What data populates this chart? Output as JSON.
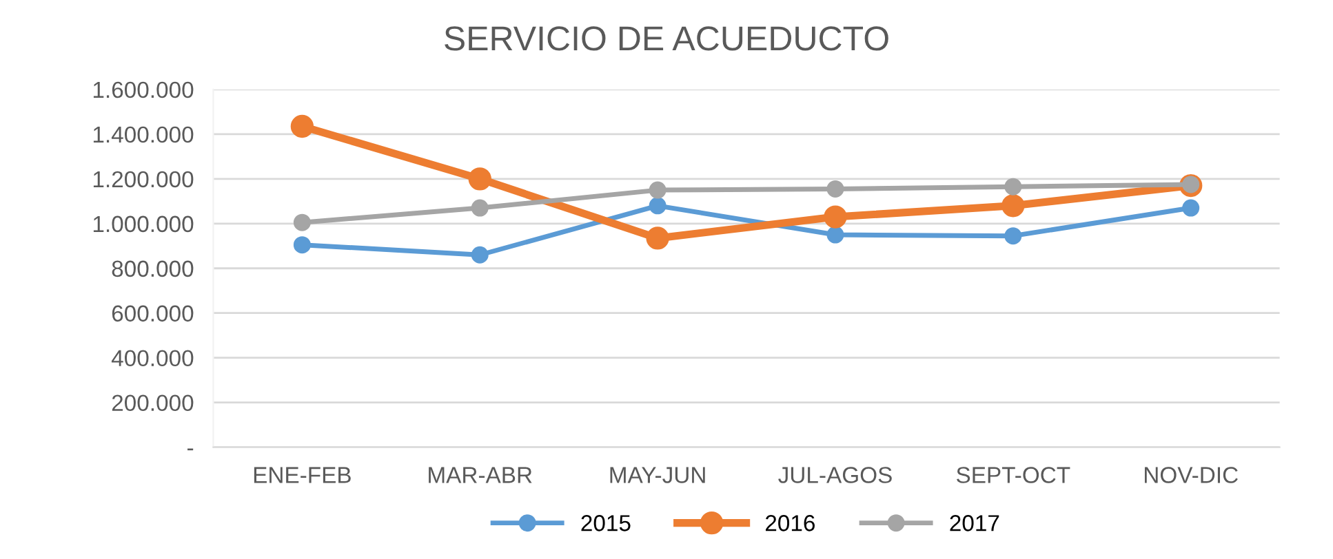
{
  "chart_data": {
    "type": "line",
    "title": "SERVICIO DE ACUEDUCTO",
    "categories": [
      "ENE-FEB",
      "MAR-ABR",
      "MAY-JUN",
      "JUL-AGOS",
      "SEPT-OCT",
      "NOV-DIC"
    ],
    "series": [
      {
        "name": "2015",
        "color": "#5b9bd5",
        "values": [
          905000,
          860000,
          1080000,
          950000,
          945000,
          1070000
        ]
      },
      {
        "name": "2016",
        "color": "#ed7d31",
        "values": [
          1435000,
          1200000,
          935000,
          1030000,
          1080000,
          1170000
        ]
      },
      {
        "name": "2017",
        "color": "#a5a5a5",
        "values": [
          1005000,
          1070000,
          1150000,
          1155000,
          1165000,
          1175000
        ]
      }
    ],
    "ylim": [
      0,
      1600000
    ],
    "yticks": [
      {
        "value": 0,
        "label": "-"
      },
      {
        "value": 200000,
        "label": "200.000"
      },
      {
        "value": 400000,
        "label": "400.000"
      },
      {
        "value": 600000,
        "label": "600.000"
      },
      {
        "value": 800000,
        "label": "800.000"
      },
      {
        "value": 1000000,
        "label": "1.000.000"
      },
      {
        "value": 1200000,
        "label": "1.200.000"
      },
      {
        "value": 1400000,
        "label": "1.400.000"
      },
      {
        "value": 1600000,
        "label": "1.600.000"
      }
    ],
    "grid": "y",
    "legend": "bottom",
    "marker": "circle",
    "line_style": "solid"
  }
}
